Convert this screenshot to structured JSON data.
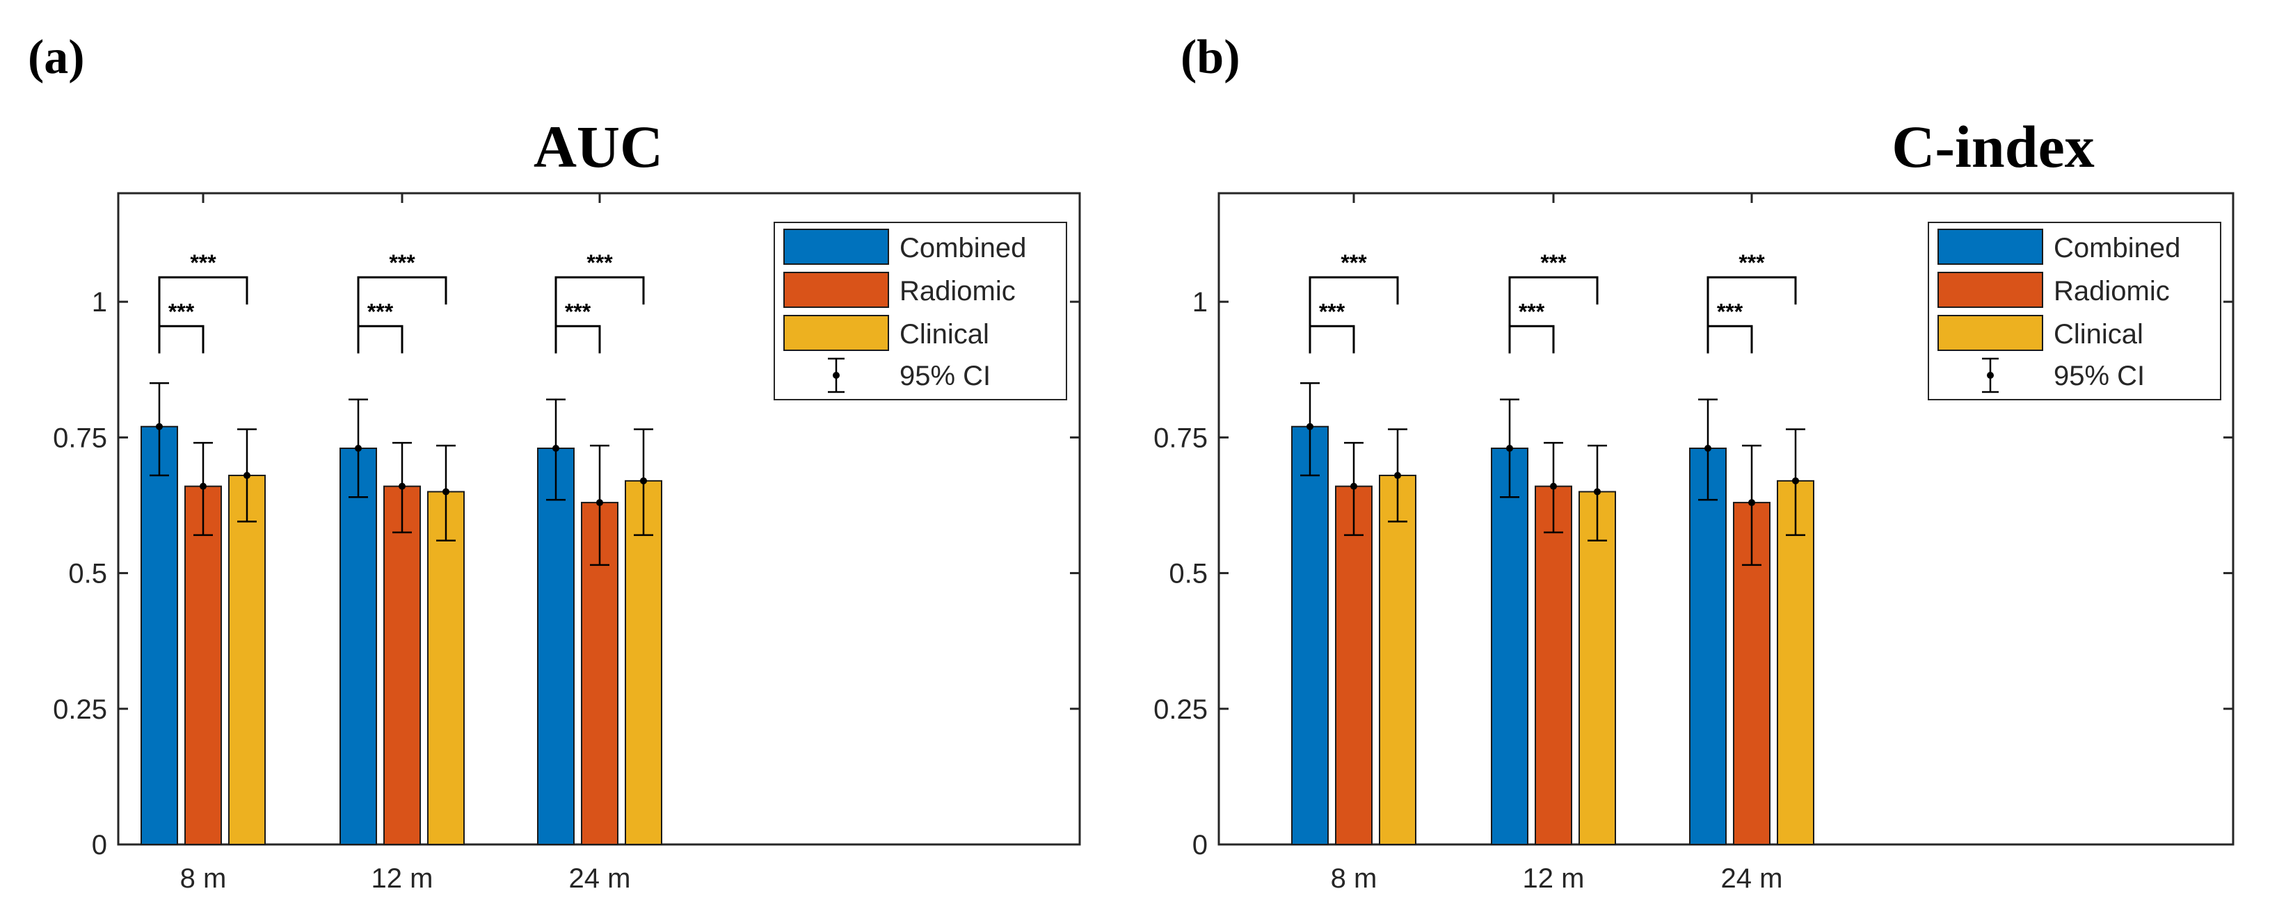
{
  "chart_data": [
    {
      "type": "bar",
      "panel_label": "(a)",
      "title": "AUC",
      "categories": [
        "8 m",
        "12 m",
        "24 m"
      ],
      "series": [
        {
          "name": "Combined",
          "color": "#0072BD",
          "values": [
            0.77,
            0.73,
            0.73
          ],
          "ci_low": [
            0.68,
            0.64,
            0.635
          ],
          "ci_high": [
            0.85,
            0.82,
            0.82
          ]
        },
        {
          "name": "Radiomic",
          "color": "#D95319",
          "values": [
            0.66,
            0.66,
            0.63
          ],
          "ci_low": [
            0.57,
            0.575,
            0.515
          ],
          "ci_high": [
            0.74,
            0.74,
            0.735
          ]
        },
        {
          "name": "Clinical",
          "color": "#EDB120",
          "values": [
            0.68,
            0.65,
            0.67
          ],
          "ci_low": [
            0.595,
            0.56,
            0.57
          ],
          "ci_high": [
            0.765,
            0.735,
            0.765
          ]
        }
      ],
      "ci_legend": "95% CI",
      "significance": [
        {
          "category": 0,
          "from": "Combined",
          "to": "Radiomic",
          "label": "***"
        },
        {
          "category": 0,
          "from": "Combined",
          "to": "Clinical",
          "label": "***"
        },
        {
          "category": 1,
          "from": "Combined",
          "to": "Radiomic",
          "label": "***"
        },
        {
          "category": 1,
          "from": "Combined",
          "to": "Clinical",
          "label": "***"
        },
        {
          "category": 2,
          "from": "Combined",
          "to": "Radiomic",
          "label": "***"
        },
        {
          "category": 2,
          "from": "Combined",
          "to": "Clinical",
          "label": "***"
        }
      ],
      "ylim": [
        0,
        1.2
      ],
      "yticks": [
        0,
        0.25,
        0.5,
        0.75,
        1
      ],
      "ytick_labels": [
        "0",
        "0.25",
        "0.5",
        "0.75",
        "1"
      ],
      "xlabel": "",
      "ylabel": "",
      "legend_position": "top-right",
      "grid": false
    },
    {
      "type": "bar",
      "panel_label": "(b)",
      "title": "C-index",
      "categories": [
        "8 m",
        "12 m",
        "24 m"
      ],
      "series": [
        {
          "name": "Combined",
          "color": "#0072BD",
          "values": [
            0.77,
            0.73,
            0.73
          ],
          "ci_low": [
            0.68,
            0.64,
            0.635
          ],
          "ci_high": [
            0.85,
            0.82,
            0.82
          ]
        },
        {
          "name": "Radiomic",
          "color": "#D95319",
          "values": [
            0.66,
            0.66,
            0.63
          ],
          "ci_low": [
            0.57,
            0.575,
            0.515
          ],
          "ci_high": [
            0.74,
            0.74,
            0.735
          ]
        },
        {
          "name": "Clinical",
          "color": "#EDB120",
          "values": [
            0.68,
            0.65,
            0.67
          ],
          "ci_low": [
            0.595,
            0.56,
            0.57
          ],
          "ci_high": [
            0.765,
            0.735,
            0.765
          ]
        }
      ],
      "ci_legend": "95% CI",
      "significance": [
        {
          "category": 0,
          "from": "Combined",
          "to": "Radiomic",
          "label": "***"
        },
        {
          "category": 0,
          "from": "Combined",
          "to": "Clinical",
          "label": "***"
        },
        {
          "category": 1,
          "from": "Combined",
          "to": "Radiomic",
          "label": "***"
        },
        {
          "category": 1,
          "from": "Combined",
          "to": "Clinical",
          "label": "***"
        },
        {
          "category": 2,
          "from": "Combined",
          "to": "Radiomic",
          "label": "***"
        },
        {
          "category": 2,
          "from": "Combined",
          "to": "Clinical",
          "label": "***"
        }
      ],
      "ylim": [
        0,
        1.2
      ],
      "yticks": [
        0,
        0.25,
        0.5,
        0.75,
        1
      ],
      "ytick_labels": [
        "0",
        "0.25",
        "0.5",
        "0.75",
        "1"
      ],
      "xlabel": "",
      "ylabel": "",
      "legend_position": "top-right",
      "grid": false
    }
  ]
}
